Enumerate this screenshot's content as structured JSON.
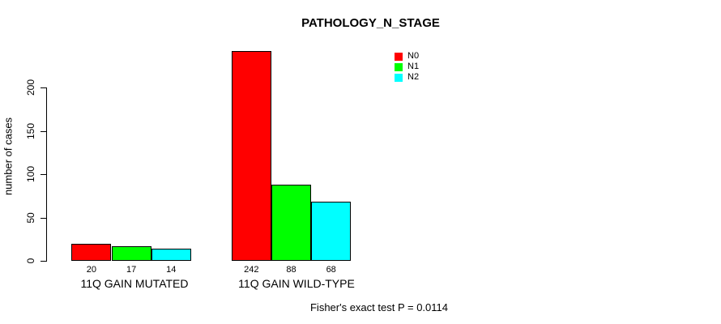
{
  "chart_data": {
    "type": "bar",
    "title": "PATHOLOGY_N_STAGE",
    "ylabel": "number of cases",
    "xlabel": "",
    "categories": [
      "11Q GAIN MUTATED",
      "11Q GAIN WILD-TYPE"
    ],
    "series": [
      {
        "name": "N0",
        "color": "#ff0000",
        "values": [
          20,
          242
        ]
      },
      {
        "name": "N1",
        "color": "#00ff00",
        "values": [
          17,
          88
        ]
      },
      {
        "name": "N2",
        "color": "#00ffff",
        "values": [
          14,
          68
        ]
      }
    ],
    "yticks": [
      0,
      50,
      100,
      150,
      200
    ],
    "ylim": [
      0,
      242
    ],
    "grid": false,
    "bar_value_labels_shown": true,
    "legend_position": "top-right",
    "legend_entries": [
      "N0",
      "N1",
      "N2"
    ],
    "annotation": "Fisher's exact test P = 0.0114"
  },
  "colors": {
    "background": "#ffffff",
    "axis": "#000000",
    "text": "#000000",
    "bar_border": "#000000",
    "n0": "#ff0000",
    "n1": "#00ff00",
    "n2": "#00ffff"
  }
}
